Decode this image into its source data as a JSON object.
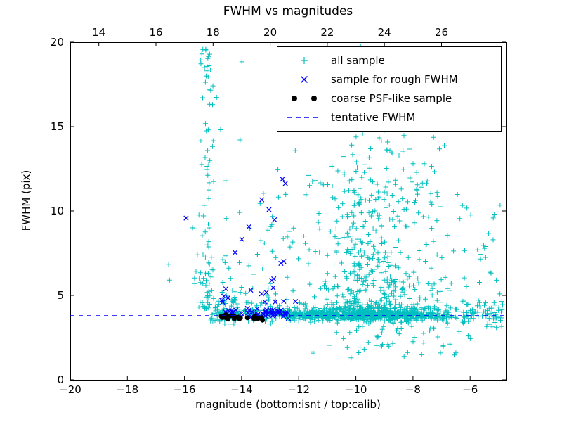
{
  "figure": {
    "title": "FWHM vs magnitudes",
    "xlabel": "magnitude (bottom:isnt / top:calib)",
    "ylabel": "FWHM (pix)"
  },
  "legend": {
    "items": [
      {
        "label": "all sample",
        "marker": "plus",
        "color": "#00bfbf"
      },
      {
        "label": "sample for rough FWHM",
        "marker": "x",
        "color": "#0000ff"
      },
      {
        "label": "coarse PSF-like sample",
        "marker": "dot",
        "color": "#000000"
      },
      {
        "label": "tentative FWHM",
        "marker": "dashed-line",
        "color": "#0000ff"
      }
    ]
  },
  "chart_data": {
    "type": "scatter",
    "title": "FWHM vs magnitudes",
    "xlabel": "magnitude (bottom:isnt / top:calib)",
    "ylabel": "FWHM (pix)",
    "xlim": [
      -20,
      -4.75
    ],
    "ylim": [
      0,
      20
    ],
    "grid": false,
    "legend_position": "upper right",
    "x_axis": {
      "ticks": [
        -20,
        -18,
        -16,
        -14,
        -12,
        -10,
        -8,
        -6
      ],
      "labels": [
        "−20",
        "−18",
        "−16",
        "−14",
        "−12",
        "−10",
        "−8",
        "−6"
      ]
    },
    "top_axis": {
      "offset": 33,
      "ticks": [
        14,
        16,
        18,
        20,
        22,
        24,
        26
      ],
      "labels": [
        "14",
        "16",
        "18",
        "20",
        "22",
        "24",
        "26"
      ]
    },
    "y_axis": {
      "ticks": [
        0,
        5,
        10,
        15,
        20
      ],
      "labels": [
        "0",
        "5",
        "10",
        "15",
        "20"
      ]
    },
    "line": {
      "name": "tentative FWHM",
      "y": 3.8,
      "color": "#0000ff",
      "dash": [
        6,
        6
      ]
    },
    "series": [
      {
        "name": "all sample",
        "marker": "plus",
        "color": "#00bfbf",
        "size": 3.5,
        "clusters": [
          {
            "n": 650,
            "x": [
              "normal",
              -9.2,
              1.5,
              -12.8,
              -4.85
            ],
            "y": [
              "normal",
              3.85,
              0.18,
              3.2,
              4.6
            ]
          },
          {
            "n": 180,
            "x": [
              "uniform",
              -12.6,
              -10.6
            ],
            "y": [
              "normal",
              3.85,
              0.15,
              3.3,
              4.4
            ]
          },
          {
            "n": 420,
            "x": [
              "normal",
              -9.4,
              1.15,
              -12.4,
              -5.0
            ],
            "y": [
              "pow",
              4.2,
              9.5,
              2.2
            ]
          },
          {
            "n": 75,
            "x": [
              "normal",
              -9.3,
              1.0,
              -11.8,
              -6.2
            ],
            "y": [
              "uniform",
              9.0,
              19.8
            ]
          },
          {
            "n": 85,
            "x": [
              "normal",
              -15.2,
              0.15,
              -15.5,
              -14.8
            ],
            "y": [
              "pow",
              4.2,
              15.5,
              1.6
            ]
          },
          {
            "n": 130,
            "x": [
              "uniform",
              -15.15,
              -12.6
            ],
            "y": [
              "normal",
              3.95,
              0.3,
              3.3,
              5.0
            ]
          },
          {
            "n": 70,
            "x": [
              "uniform",
              -14.8,
              -11.6
            ],
            "y": [
              "pow",
              4.5,
              8.0,
              1.8
            ]
          },
          {
            "n": 55,
            "x": [
              "normal",
              -8.6,
              1.4,
              -11.5,
              -5.0
            ],
            "y": [
              "uniform",
              1.3,
              3.35
            ]
          },
          {
            "n": 60,
            "x": [
              "uniform",
              -6.3,
              -4.85
            ],
            "y": [
              "normal",
              3.9,
              0.45,
              2.6,
              5.2
            ]
          },
          {
            "n": 40,
            "x": [
              "uniform",
              -7.6,
              -4.9
            ],
            "y": [
              "pow",
              4.6,
              6.5,
              1.5
            ]
          },
          {
            "n": 10,
            "x": [
              "uniform",
              -16.6,
              -15.3
            ],
            "y": [
              "pow",
              4.5,
              5.5,
              1.5
            ]
          },
          {
            "n": 8,
            "x": [
              "uniform",
              -15.4,
              -13.8
            ],
            "y": [
              "uniform",
              14.0,
              19.6
            ]
          },
          {
            "n": 12,
            "x": [
              "uniform",
              -12.5,
              -9.0
            ],
            "y": [
              "uniform",
              13.5,
              19.7
            ]
          }
        ]
      },
      {
        "name": "sample for rough FWHM",
        "marker": "x",
        "color": "#0000ff",
        "size": 3.2,
        "clusters": [
          {
            "n": 40,
            "x": [
              "uniform",
              -13.7,
              -12.35
            ],
            "y": [
              "normal",
              3.95,
              0.12,
              3.6,
              4.3
            ]
          },
          {
            "n": 12,
            "x": [
              "uniform",
              -14.85,
              -13.7
            ],
            "y": [
              "normal",
              4.0,
              0.15,
              3.7,
              4.4
            ]
          },
          {
            "n": 22,
            "x": [
              "uniform",
              -14.7,
              -12.1
            ],
            "y": [
              "pow",
              4.6,
              7.0,
              1.7
            ]
          },
          {
            "n": 3,
            "x": [
              "uniform",
              -13.3,
              -12.4
            ],
            "y": [
              "uniform",
              10.5,
              12.0
            ]
          },
          {
            "n": 1,
            "x": [
              "uniform",
              -15.96,
              -15.94
            ],
            "y": [
              "uniform",
              9.55,
              9.6
            ]
          }
        ]
      },
      {
        "name": "coarse PSF-like sample",
        "marker": "dot",
        "color": "#000000",
        "size": 3.5,
        "clusters": [
          {
            "n": 24,
            "x": [
              "uniform",
              -14.9,
              -13.25
            ],
            "y": [
              "normal",
              3.68,
              0.07,
              3.5,
              3.85
            ]
          }
        ]
      }
    ]
  }
}
